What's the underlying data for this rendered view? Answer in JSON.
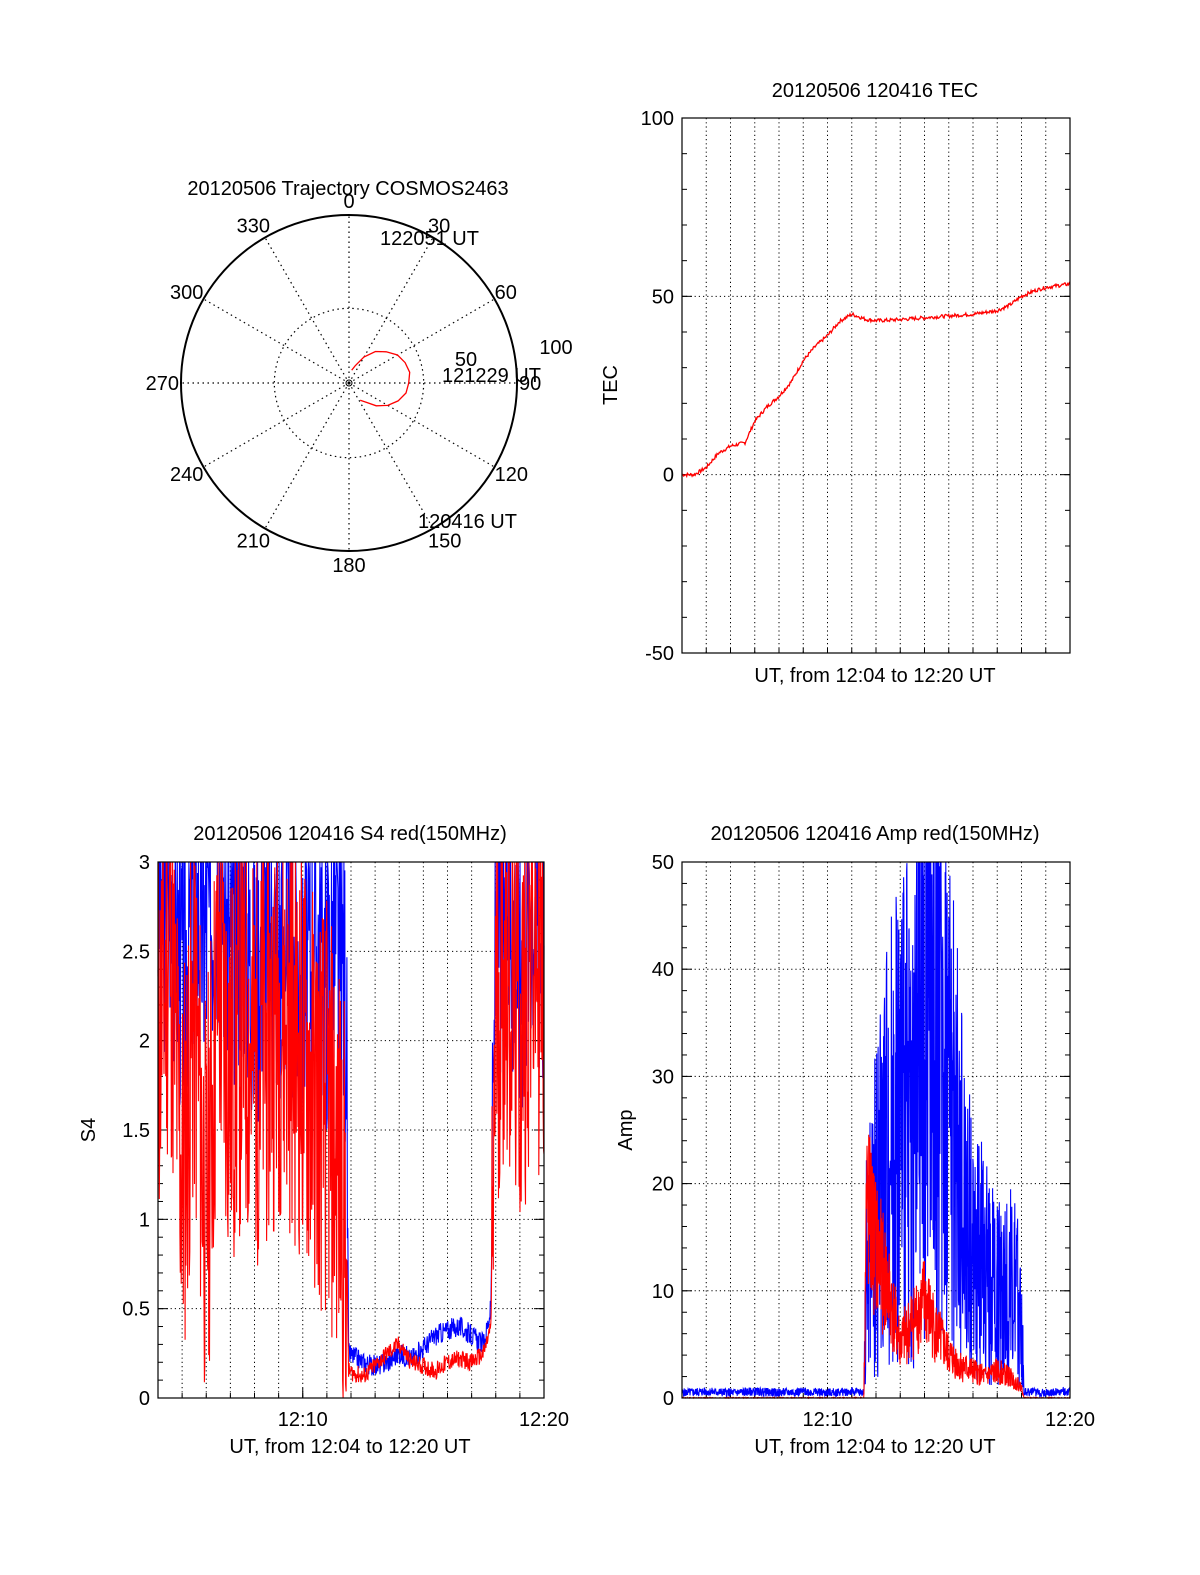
{
  "chart_data": [
    {
      "type": "polar",
      "title": "20120506 Trajectory COSMOS2463",
      "angle_labels": [
        "0",
        "30",
        "60",
        "90",
        "120",
        "150",
        "180",
        "210",
        "240",
        "270",
        "300",
        "330"
      ],
      "radial_labels": [
        "50",
        "100"
      ],
      "rlim": [
        0,
        100
      ],
      "angle_direction": "clockwise, 0 at top",
      "grid": true,
      "trajectory": {
        "color": "#ff0000",
        "points": [
          {
            "az": 12,
            "el": 83,
            "time": "122051 UT"
          },
          {
            "az": 20,
            "el": 80
          },
          {
            "az": 30,
            "el": 74
          },
          {
            "az": 40,
            "el": 68
          },
          {
            "az": 50,
            "el": 64
          },
          {
            "az": 60,
            "el": 60
          },
          {
            "az": 70,
            "el": 58
          },
          {
            "az": 80,
            "el": 57
          },
          {
            "az": 90,
            "el": 58
          },
          {
            "az": 100,
            "el": 59
          },
          {
            "az": 110,
            "el": 62
          },
          {
            "az": 120,
            "el": 66
          },
          {
            "az": 130,
            "el": 71
          },
          {
            "az": 138,
            "el": 76
          },
          {
            "az": 147,
            "el": 79
          }
        ],
        "time_labels": [
          {
            "text": "122051 UT"
          },
          {
            "text": "121229 UT"
          },
          {
            "text": "120416 UT"
          }
        ]
      }
    },
    {
      "type": "line",
      "title": "20120506 120416 TEC",
      "xlabel": "UT, from 12:04 to 12:20 UT",
      "ylabel": "TEC",
      "xlim": [
        0,
        16
      ],
      "ylim": [
        -50,
        100
      ],
      "yticks": [
        "-50",
        "0",
        "50",
        "100"
      ],
      "grid": "dotted vertical lines, horizontal at ±50",
      "series": [
        {
          "color": "#ff0000",
          "x": [
            0,
            0.5,
            1,
            1.5,
            2,
            2.6,
            3,
            3.5,
            4,
            4.5,
            5,
            5.5,
            6,
            6.5,
            7,
            7.6,
            8,
            8.5,
            9,
            10,
            11,
            12,
            13,
            13.5,
            14,
            14.5,
            15,
            15.5,
            16
          ],
          "y": [
            0,
            0,
            2,
            6,
            8,
            9,
            15,
            19,
            22,
            26,
            32,
            36,
            39,
            43,
            45,
            43.5,
            43.2,
            43.3,
            43.5,
            44,
            44.5,
            45,
            46,
            47.5,
            50,
            51.5,
            52.5,
            53,
            53.5
          ]
        }
      ]
    },
    {
      "type": "line",
      "title": "20120506 120416 S4 red(150MHz)",
      "xlabel": "UT, from 12:04 to 12:20 UT",
      "ylabel": "S4",
      "xlim": [
        0,
        16
      ],
      "ylim": [
        0,
        3
      ],
      "xticks": [
        "12:10",
        "12:20"
      ],
      "yticks": [
        "0",
        "0.5",
        "1",
        "1.5",
        "2",
        "2.5",
        "3"
      ],
      "grid": true,
      "series": [
        {
          "color": "#0000ff",
          "x": [
            0,
            0.5,
            1,
            1.5,
            2,
            2.5,
            3,
            3.5,
            4,
            4.5,
            5,
            5.5,
            6,
            6.5,
            7,
            7.5,
            7.8,
            7.9,
            8.5,
            9,
            9.5,
            10,
            10.5,
            11,
            11.5,
            12,
            12.5,
            13,
            13.5,
            13.8,
            14,
            14.5,
            15,
            15.5,
            16
          ],
          "y": [
            2.7,
            2.9,
            2.4,
            2.8,
            2.6,
            3.0,
            2.5,
            2.8,
            2.3,
            2.7,
            2.5,
            2.6,
            2.2,
            2.6,
            2.4,
            2.5,
            2.3,
            0.25,
            0.2,
            0.18,
            0.2,
            0.25,
            0.22,
            0.28,
            0.35,
            0.38,
            0.4,
            0.35,
            0.3,
            0.5,
            2.6,
            2.8,
            2.4,
            2.9,
            2.5
          ]
        },
        {
          "color": "#ff0000",
          "x": [
            0,
            0.5,
            1,
            1.5,
            2,
            2.5,
            3,
            3.5,
            4,
            4.5,
            5,
            5.5,
            6,
            6.5,
            7,
            7.5,
            7.8,
            7.9,
            8.5,
            9,
            9.5,
            10,
            10.5,
            11,
            11.5,
            12,
            12.5,
            13,
            13.5,
            13.8,
            14,
            14.5,
            15,
            15.5,
            16
          ],
          "y": [
            2.0,
            2.6,
            1.2,
            2.2,
            1.0,
            2.4,
            1.8,
            2.1,
            1.9,
            2.0,
            2.2,
            2.1,
            1.9,
            1.7,
            1.6,
            1.3,
            1.0,
            0.15,
            0.12,
            0.18,
            0.25,
            0.3,
            0.2,
            0.18,
            0.15,
            0.2,
            0.22,
            0.2,
            0.25,
            0.4,
            2.2,
            2.5,
            2.0,
            2.6,
            2.3
          ]
        }
      ]
    },
    {
      "type": "line",
      "title": "20120506 120416 Amp red(150MHz)",
      "xlabel": "UT, from 12:04 to 12:20 UT",
      "ylabel": "Amp",
      "xlim": [
        0,
        16
      ],
      "ylim": [
        0,
        50
      ],
      "xticks": [
        "12:10",
        "12:20"
      ],
      "yticks": [
        "0",
        "10",
        "20",
        "30",
        "40",
        "50"
      ],
      "grid": true,
      "series": [
        {
          "color": "#0000ff",
          "x": [
            0,
            1,
            2,
            3,
            4,
            5,
            6,
            7,
            7.5,
            7.6,
            8,
            8.5,
            9,
            9.5,
            10,
            10.3,
            10.6,
            11,
            11.5,
            12,
            12.5,
            13,
            13.5,
            14,
            14.1,
            15,
            16
          ],
          "y": [
            0.5,
            0.6,
            0.5,
            0.6,
            0.5,
            0.6,
            0.5,
            0.6,
            0.5,
            12,
            18,
            24,
            28,
            25,
            35,
            42,
            36,
            30,
            20,
            14,
            12,
            10,
            11,
            8,
            0.6,
            0.5,
            0.6
          ]
        },
        {
          "color": "#ff0000",
          "x": [
            0,
            1,
            2,
            3,
            4,
            5,
            6,
            7,
            7.5,
            7.6,
            8,
            8.5,
            9,
            9.5,
            10,
            10.5,
            11,
            11.5,
            12,
            12.5,
            13,
            13.5,
            14,
            14.1,
            15,
            16
          ],
          "y": [
            0,
            0,
            0,
            0,
            0,
            0,
            0,
            0,
            0,
            18,
            14,
            10,
            5,
            7,
            9,
            6,
            4,
            3,
            2.5,
            2,
            2.5,
            2,
            1,
            0,
            0,
            0
          ]
        }
      ]
    }
  ]
}
